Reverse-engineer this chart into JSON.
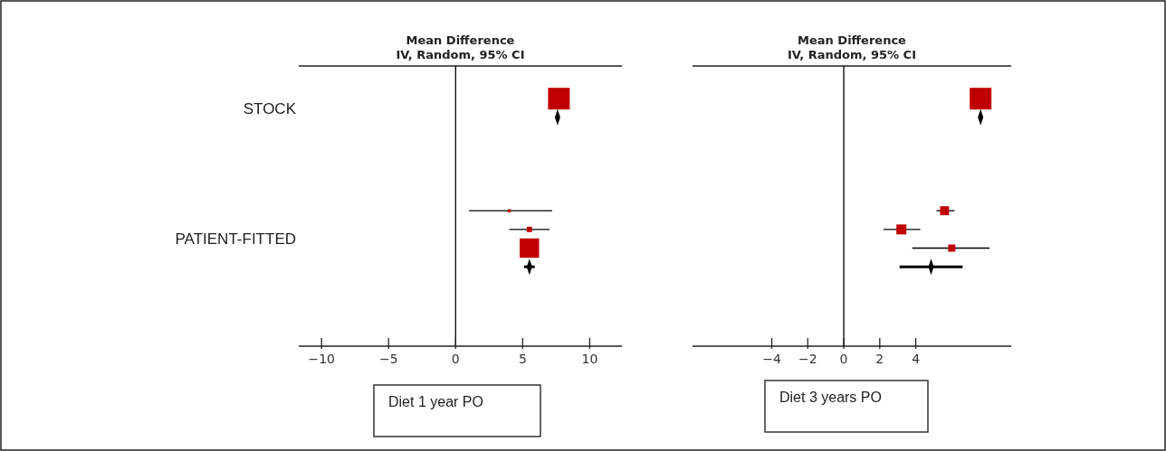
{
  "chart_data": [
    {
      "type": "scatter",
      "orientation": "horizontal",
      "title": "Mean Difference\nIV, Random, 95% CI",
      "annotations": [
        "Diet 1 year PO"
      ],
      "categories": [
        null,
        null,
        null,
        null,
        "STOCK",
        null,
        null,
        null,
        null,
        null,
        null,
        null,
        null,
        null,
        null,
        null,
        null,
        null,
        "PATIENT-FITTED",
        null,
        null,
        null,
        null,
        null,
        null,
        null,
        null,
        null,
        null,
        null
      ],
      "xlim": [
        -11.7,
        12.4
      ],
      "xticks": [
        -10,
        -5,
        0,
        5,
        10
      ],
      "ref_lines": [
        {
          "axis": "x",
          "value": 0,
          "color": "#000000"
        }
      ],
      "series": [
        {
          "type": "bubble",
          "marker": "square",
          "color": "#c00000",
          "values": [
            null,
            null,
            null,
            7.7,
            null,
            null,
            null,
            null,
            null,
            null,
            null,
            null,
            null,
            null,
            null,
            4.0,
            null,
            5.5,
            null,
            5.5,
            null,
            null,
            null,
            null,
            null,
            null,
            null,
            null,
            null,
            null
          ],
          "sizes": [
            null,
            null,
            null,
            1,
            null,
            null,
            null,
            null,
            null,
            null,
            null,
            null,
            null,
            null,
            null,
            0.02,
            null,
            0.06,
            null,
            0.8,
            null,
            null,
            null,
            null,
            null,
            null,
            null,
            null,
            null,
            null
          ],
          "errors": [
            null,
            null,
            null,
            null,
            null,
            null,
            null,
            null,
            null,
            null,
            null,
            null,
            null,
            null,
            null,
            [
              1.0,
              7.2
            ],
            null,
            [
              4.0,
              7.0
            ],
            null,
            null,
            null,
            null,
            null,
            null,
            null,
            null,
            null,
            null,
            null,
            null
          ]
        },
        {
          "type": "scatter",
          "marker": "diamond",
          "color": "#000000",
          "values": [
            null,
            null,
            null,
            null,
            null,
            7.6,
            null,
            null,
            null,
            null,
            null,
            null,
            null,
            null,
            null,
            null,
            null,
            null,
            null,
            null,
            null,
            5.5,
            null,
            null,
            null,
            null,
            null,
            null,
            null,
            null
          ],
          "errors": [
            null,
            null,
            null,
            null,
            null,
            null,
            null,
            null,
            null,
            null,
            null,
            null,
            null,
            null,
            null,
            null,
            null,
            null,
            null,
            null,
            null,
            [
              5.1,
              5.9
            ],
            null,
            null,
            null,
            null,
            null,
            null,
            null,
            null
          ]
        }
      ]
    },
    {
      "type": "scatter",
      "orientation": "horizontal",
      "title": "Mean Difference\nIV, Random, 95% CI",
      "annotations": [
        "Diet 3 years PO"
      ],
      "categories": [
        null,
        null,
        null,
        null,
        null,
        null,
        null,
        null,
        null,
        null,
        null,
        null,
        null,
        null,
        null,
        null,
        null,
        null,
        null,
        null,
        null,
        null,
        null,
        null,
        null,
        null,
        null,
        null,
        null,
        null
      ],
      "xlim": [
        -8.4,
        9.3
      ],
      "xticks": [
        -4,
        -2,
        0,
        2,
        4
      ],
      "ref_lines": [
        {
          "axis": "x",
          "value": 0,
          "color": "#000000"
        }
      ],
      "series": [
        {
          "type": "bubble",
          "marker": "square",
          "color": "#c00000",
          "values": [
            null,
            null,
            null,
            7.6,
            null,
            null,
            null,
            null,
            null,
            null,
            null,
            null,
            null,
            null,
            null,
            5.6,
            null,
            3.2,
            null,
            6.0,
            null,
            null,
            null,
            null,
            null,
            null,
            null,
            null,
            null,
            null
          ],
          "sizes": [
            null,
            null,
            null,
            1,
            null,
            null,
            null,
            null,
            null,
            null,
            null,
            null,
            null,
            null,
            null,
            0.17,
            null,
            0.21,
            null,
            0.11,
            null,
            null,
            null,
            null,
            null,
            null,
            null,
            null,
            null,
            null
          ],
          "errors": [
            null,
            null,
            null,
            null,
            null,
            null,
            null,
            null,
            null,
            null,
            null,
            null,
            null,
            null,
            null,
            [
              5.15,
              6.15
            ],
            null,
            [
              2.2,
              4.25
            ],
            null,
            [
              3.8,
              8.1
            ],
            null,
            null,
            null,
            null,
            null,
            null,
            null,
            null,
            null,
            null
          ]
        },
        {
          "type": "scatter",
          "marker": "diamond",
          "color": "#000000",
          "values": [
            null,
            null,
            null,
            null,
            null,
            7.6,
            null,
            null,
            null,
            null,
            null,
            null,
            null,
            null,
            null,
            null,
            null,
            null,
            null,
            null,
            null,
            4.85,
            null,
            null,
            null,
            null,
            null,
            null,
            null,
            null
          ],
          "errors": [
            null,
            null,
            null,
            null,
            null,
            null,
            null,
            null,
            null,
            null,
            null,
            null,
            null,
            null,
            null,
            null,
            null,
            null,
            null,
            null,
            null,
            [
              3.1,
              6.6
            ],
            null,
            null,
            null,
            null,
            null,
            null,
            null,
            null
          ]
        }
      ]
    }
  ]
}
